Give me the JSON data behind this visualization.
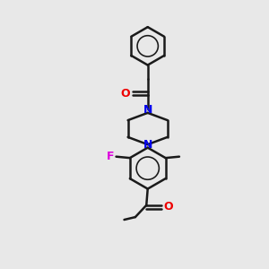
{
  "bg_color": "#e8e8e8",
  "bond_color": "#1a1a1a",
  "bond_width": 1.8,
  "N_color": "#0000ee",
  "O_color": "#ee0000",
  "F_color": "#dd00dd",
  "figsize": [
    3.0,
    3.0
  ],
  "dpi": 100,
  "xlim": [
    0,
    10
  ],
  "ylim": [
    0,
    10
  ]
}
